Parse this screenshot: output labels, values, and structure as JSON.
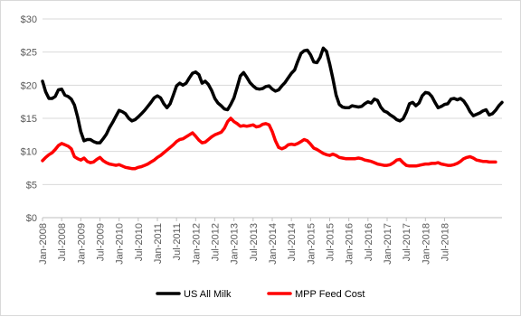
{
  "chart_data": {
    "type": "line",
    "title": "",
    "xlabel": "",
    "ylabel": "",
    "ylim": [
      0,
      30
    ],
    "y_ticks": [
      "$0",
      "$5",
      "$10",
      "$15",
      "$20",
      "$25",
      "$30"
    ],
    "y_tick_values": [
      0,
      5,
      10,
      15,
      20,
      25,
      30
    ],
    "x_start": "Jan-2008",
    "x_tick_labels": [
      "Jan-2008",
      "Jul-2008",
      "Jan-2009",
      "Jul-2009",
      "Jan-2010",
      "Jul-2010",
      "Jan-2011",
      "Jul-2011",
      "Jan-2012",
      "Jul-2012",
      "Jan-2013",
      "Jul-2013",
      "Jan-2014",
      "Jul-2014",
      "Jan-2015",
      "Jul-2015",
      "Jan-2016",
      "Jul-2016",
      "Jan-2017",
      "Jul-2017",
      "Jan-2018",
      "Jul-2018"
    ],
    "grid": true,
    "legend_position": "bottom",
    "series": [
      {
        "name": "US All Milk",
        "color": "#000000",
        "values": [
          20.6,
          19.0,
          18.0,
          18.0,
          18.3,
          19.3,
          19.4,
          18.5,
          18.3,
          17.9,
          17.0,
          15.2,
          13.0,
          11.6,
          11.8,
          11.8,
          11.5,
          11.3,
          11.3,
          11.9,
          12.6,
          13.6,
          14.4,
          15.3,
          16.2,
          16.0,
          15.7,
          15.0,
          14.6,
          14.8,
          15.2,
          15.7,
          16.2,
          16.8,
          17.4,
          18.1,
          18.4,
          18.1,
          17.2,
          16.6,
          17.2,
          18.5,
          19.9,
          20.3,
          20.0,
          20.3,
          21.1,
          21.8,
          22.0,
          21.6,
          20.3,
          20.6,
          20.1,
          19.2,
          18.0,
          17.3,
          16.9,
          16.4,
          16.3,
          17.1,
          18.1,
          19.7,
          21.4,
          21.9,
          21.2,
          20.4,
          19.9,
          19.5,
          19.4,
          19.5,
          19.8,
          19.9,
          19.4,
          19.1,
          19.3,
          19.9,
          20.4,
          21.1,
          21.8,
          22.3,
          23.6,
          24.8,
          25.2,
          25.3,
          24.6,
          23.5,
          23.4,
          24.2,
          25.6,
          25.1,
          23.2,
          21.0,
          18.5,
          17.1,
          16.7,
          16.6,
          16.6,
          16.9,
          16.8,
          16.7,
          16.8,
          17.2,
          17.5,
          17.3,
          17.9,
          17.7,
          16.7,
          16.1,
          15.9,
          15.5,
          15.2,
          14.8,
          14.6,
          14.9,
          15.9,
          17.2,
          17.4,
          16.9,
          17.3,
          18.4,
          18.9,
          18.8,
          18.3,
          17.4,
          16.6,
          16.8,
          17.1,
          17.2,
          17.9,
          18.0,
          17.8,
          18.0,
          17.6,
          16.9,
          16.0,
          15.4,
          15.6,
          15.8,
          16.1,
          16.3,
          15.5,
          15.7,
          16.2,
          16.9,
          17.4
        ]
      },
      {
        "name": "MPP Feed Cost",
        "color": "#ff0000",
        "values": [
          8.6,
          9.1,
          9.5,
          9.8,
          10.3,
          10.9,
          11.2,
          11.0,
          10.8,
          10.4,
          9.2,
          8.9,
          8.7,
          9.0,
          8.5,
          8.3,
          8.4,
          8.8,
          9.1,
          8.6,
          8.3,
          8.1,
          8.0,
          7.9,
          8.0,
          7.8,
          7.6,
          7.5,
          7.4,
          7.4,
          7.6,
          7.7,
          7.9,
          8.1,
          8.4,
          8.7,
          9.1,
          9.4,
          9.8,
          10.2,
          10.6,
          11.0,
          11.5,
          11.8,
          11.9,
          12.2,
          12.5,
          12.8,
          12.3,
          11.7,
          11.3,
          11.4,
          11.8,
          12.2,
          12.5,
          12.7,
          12.9,
          13.5,
          14.5,
          15.0,
          14.5,
          14.2,
          13.8,
          13.9,
          13.8,
          13.9,
          14.0,
          13.7,
          13.8,
          14.1,
          14.2,
          14.0,
          13.0,
          11.6,
          10.6,
          10.4,
          10.6,
          11.0,
          11.1,
          11.0,
          11.2,
          11.5,
          11.8,
          11.6,
          11.1,
          10.5,
          10.3,
          10.0,
          9.7,
          9.5,
          9.4,
          9.6,
          9.4,
          9.1,
          9.0,
          8.9,
          8.9,
          8.9,
          8.9,
          9.0,
          8.9,
          8.7,
          8.6,
          8.5,
          8.3,
          8.1,
          8.0,
          7.9,
          7.9,
          8.0,
          8.3,
          8.7,
          8.8,
          8.3,
          7.9,
          7.8,
          7.8,
          7.8,
          7.9,
          8.0,
          8.1,
          8.1,
          8.2,
          8.2,
          8.3,
          8.1,
          8.0,
          7.9,
          7.9,
          8.0,
          8.2,
          8.5,
          8.9,
          9.1,
          9.2,
          9.0,
          8.7,
          8.6,
          8.5,
          8.5,
          8.4,
          8.4,
          8.4
        ]
      }
    ]
  }
}
